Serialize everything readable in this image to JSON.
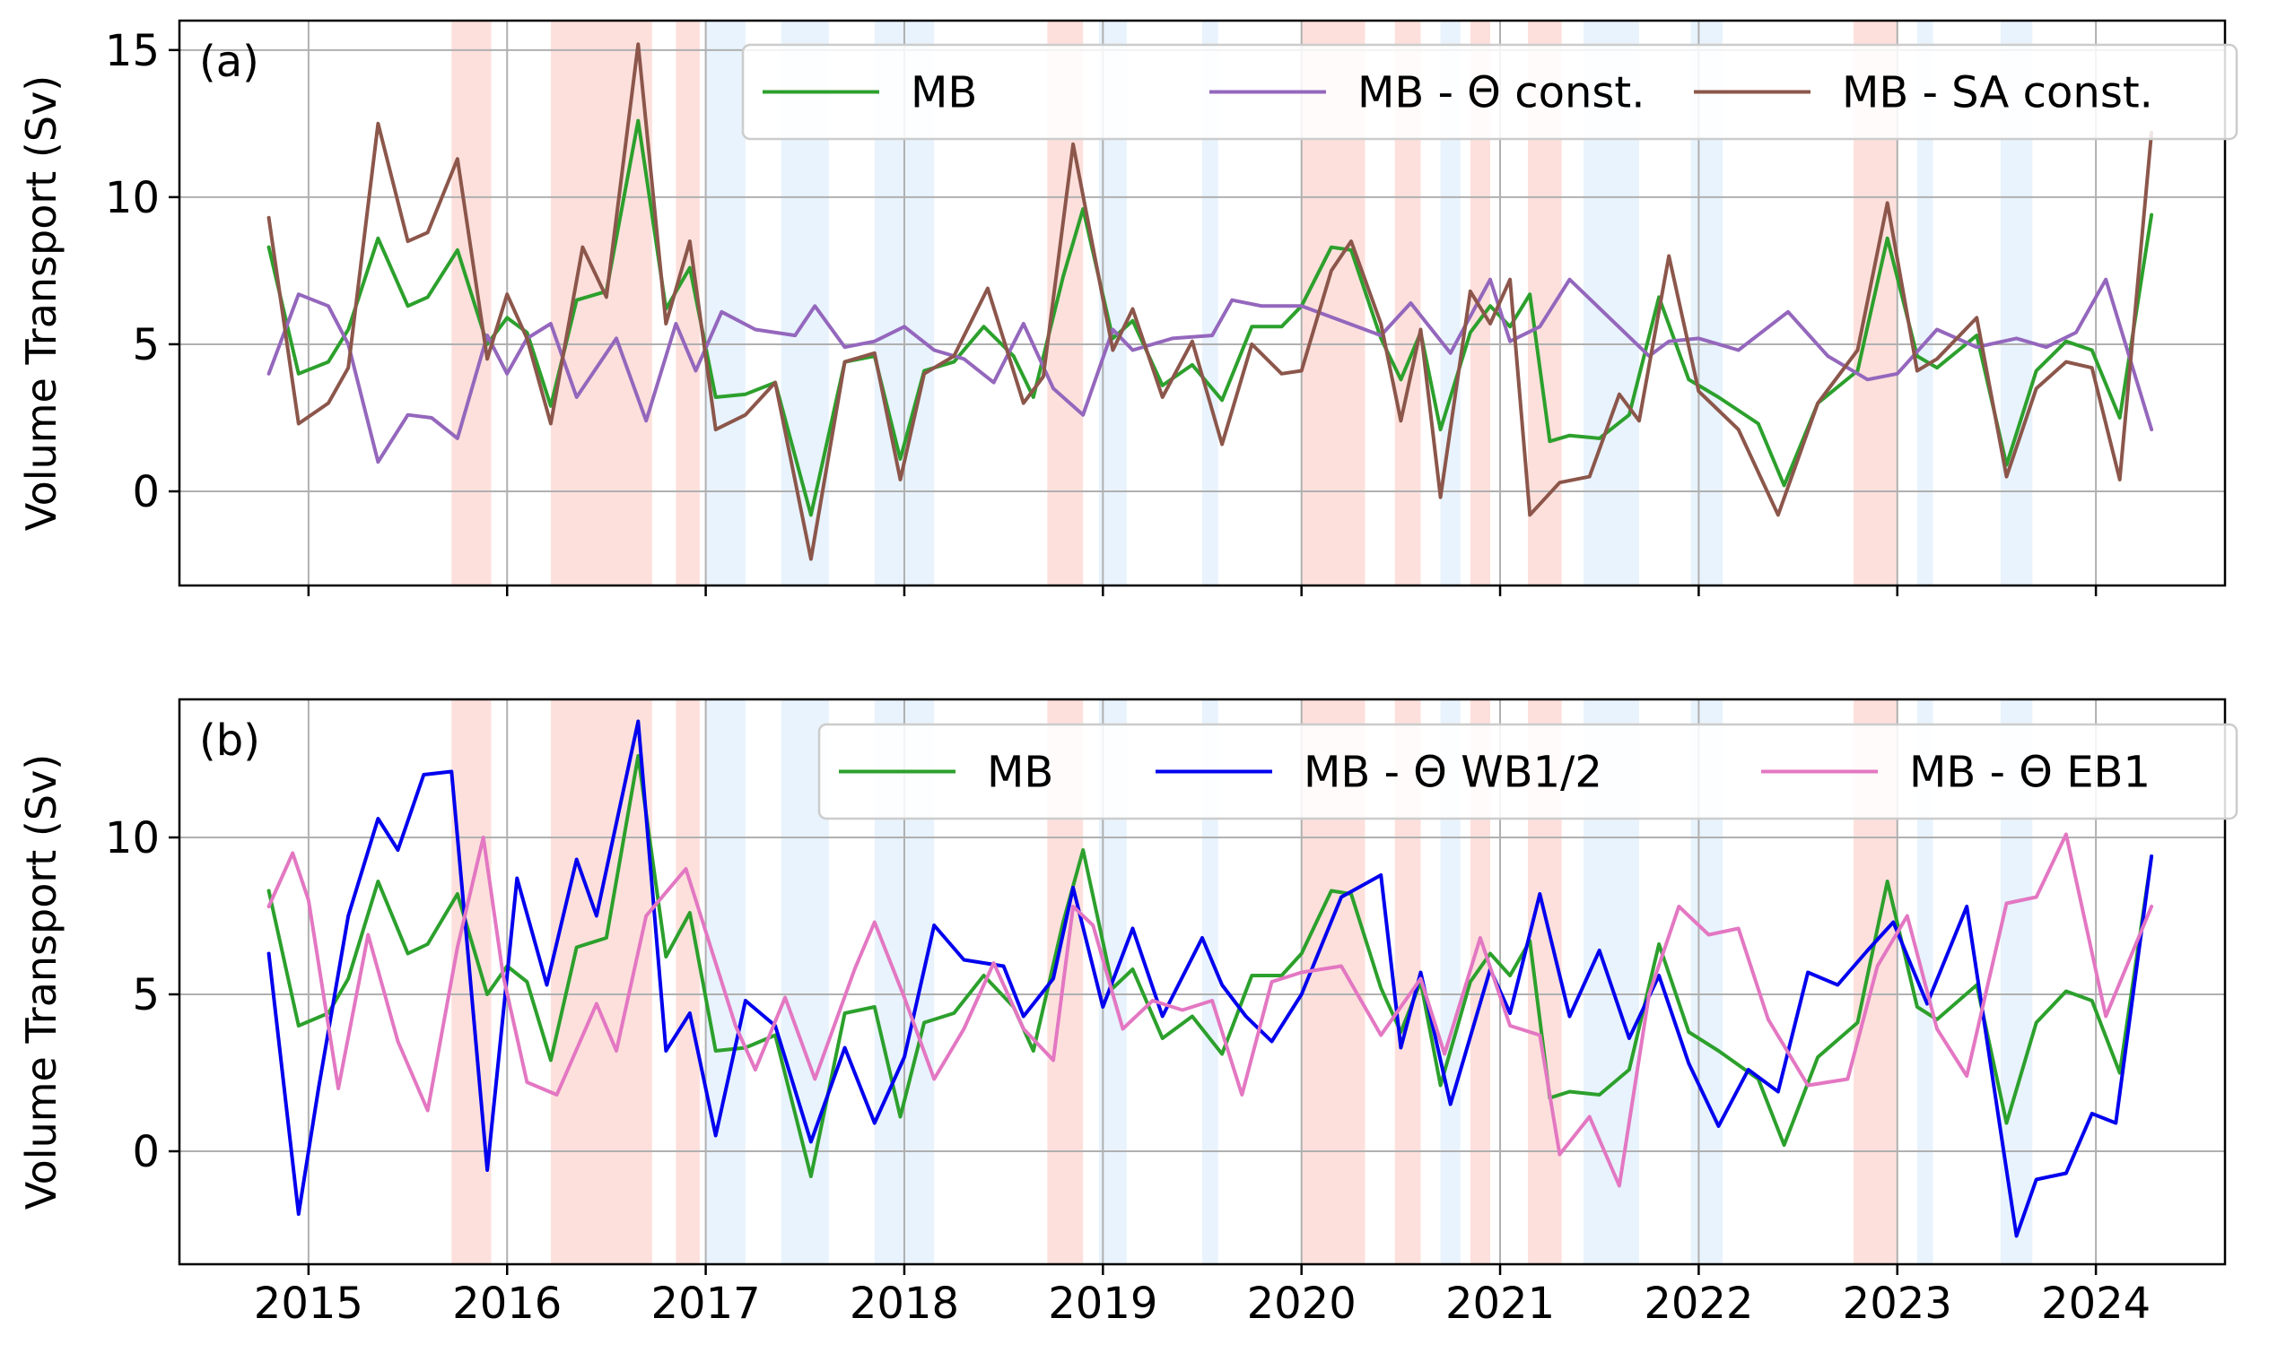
{
  "chart_data": [
    {
      "type": "line",
      "panel_label": "(a)",
      "ylabel": "Volume Transport (Sv)",
      "xlim": [
        2014.35,
        2024.65
      ],
      "ylim": [
        -3.2,
        16.0
      ],
      "yticks": [
        0,
        5,
        10,
        15
      ],
      "xticks": [
        2015,
        2016,
        2017,
        2018,
        2019,
        2020,
        2021,
        2022,
        2023,
        2024
      ],
      "grid": true,
      "legend_position": "top-right",
      "series": [
        {
          "name": "MB",
          "color": "#2ca02c",
          "x": [
            2014.8,
            2014.95,
            2015.1,
            2015.2,
            2015.35,
            2015.5,
            2015.6,
            2015.75,
            2015.9,
            2016.0,
            2016.1,
            2016.22,
            2016.35,
            2016.5,
            2016.66,
            2016.8,
            2016.92,
            2017.05,
            2017.2,
            2017.35,
            2017.53,
            2017.7,
            2017.85,
            2017.98,
            2018.1,
            2018.25,
            2018.4,
            2018.55,
            2018.65,
            2018.8,
            2018.9,
            2019.05,
            2019.15,
            2019.3,
            2019.45,
            2019.6,
            2019.75,
            2019.9,
            2020.0,
            2020.15,
            2020.25,
            2020.4,
            2020.5,
            2020.6,
            2020.7,
            2020.85,
            2020.95,
            2021.05,
            2021.15,
            2021.25,
            2021.35,
            2021.5,
            2021.65,
            2021.8,
            2021.95,
            2022.1,
            2022.3,
            2022.43,
            2022.6,
            2022.8,
            2022.95,
            2023.1,
            2023.2,
            2023.4,
            2023.55,
            2023.7,
            2023.85,
            2023.98,
            2024.12,
            2024.28
          ],
          "y": [
            8.3,
            4.0,
            4.4,
            5.5,
            8.6,
            6.3,
            6.6,
            8.2,
            5.0,
            5.9,
            5.4,
            2.9,
            6.5,
            6.8,
            12.6,
            6.2,
            7.6,
            3.2,
            3.3,
            3.7,
            -0.8,
            4.4,
            4.6,
            1.1,
            4.1,
            4.4,
            5.6,
            4.6,
            3.2,
            7.3,
            9.6,
            5.2,
            5.8,
            3.6,
            4.3,
            3.1,
            5.6,
            5.6,
            6.3,
            8.3,
            8.2,
            5.2,
            3.8,
            5.4,
            2.1,
            5.4,
            6.3,
            5.6,
            6.7,
            1.7,
            1.9,
            1.8,
            2.6,
            6.6,
            3.8,
            3.2,
            2.3,
            0.2,
            3.0,
            4.1,
            8.6,
            4.6,
            4.2,
            5.3,
            0.9,
            4.1,
            5.1,
            4.8,
            2.5,
            9.4
          ]
        },
        {
          "name": "MB - Θ const.",
          "color": "#9467bd",
          "x": [
            2014.8,
            2014.95,
            2015.1,
            2015.2,
            2015.35,
            2015.5,
            2015.62,
            2015.75,
            2015.9,
            2016.0,
            2016.1,
            2016.22,
            2016.35,
            2016.55,
            2016.7,
            2016.85,
            2016.95,
            2017.08,
            2017.25,
            2017.45,
            2017.55,
            2017.7,
            2017.85,
            2018.0,
            2018.15,
            2018.3,
            2018.45,
            2018.6,
            2018.75,
            2018.9,
            2019.05,
            2019.15,
            2019.35,
            2019.55,
            2019.65,
            2019.8,
            2020.0,
            2020.2,
            2020.4,
            2020.55,
            2020.75,
            2020.95,
            2021.05,
            2021.2,
            2021.35,
            2021.55,
            2021.75,
            2021.85,
            2022.0,
            2022.2,
            2022.45,
            2022.65,
            2022.85,
            2023.0,
            2023.2,
            2023.4,
            2023.6,
            2023.75,
            2023.9,
            2024.05,
            2024.28
          ],
          "y": [
            4.0,
            6.7,
            6.3,
            5.0,
            1.0,
            2.6,
            2.5,
            1.8,
            5.3,
            4.0,
            5.2,
            5.7,
            3.2,
            5.2,
            2.4,
            5.7,
            4.1,
            6.1,
            5.5,
            5.3,
            6.3,
            4.9,
            5.1,
            5.6,
            4.8,
            4.5,
            3.7,
            5.7,
            3.5,
            2.6,
            5.5,
            4.8,
            5.2,
            5.3,
            6.5,
            6.3,
            6.3,
            5.8,
            5.3,
            6.4,
            4.7,
            7.2,
            5.1,
            5.6,
            7.2,
            5.9,
            4.6,
            5.1,
            5.2,
            4.8,
            6.1,
            4.6,
            3.8,
            4.0,
            5.5,
            4.9,
            5.2,
            4.9,
            5.4,
            7.2,
            2.1
          ]
        },
        {
          "name": "MB - SA const.",
          "color": "#8c564b",
          "x": [
            2014.8,
            2014.95,
            2015.1,
            2015.2,
            2015.35,
            2015.5,
            2015.6,
            2015.75,
            2015.9,
            2016.0,
            2016.1,
            2016.22,
            2016.38,
            2016.5,
            2016.66,
            2016.8,
            2016.92,
            2017.05,
            2017.2,
            2017.35,
            2017.53,
            2017.7,
            2017.85,
            2017.98,
            2018.1,
            2018.25,
            2018.42,
            2018.6,
            2018.7,
            2018.85,
            2019.05,
            2019.15,
            2019.3,
            2019.45,
            2019.6,
            2019.75,
            2019.9,
            2020.0,
            2020.15,
            2020.25,
            2020.4,
            2020.5,
            2020.6,
            2020.7,
            2020.85,
            2020.95,
            2021.05,
            2021.15,
            2021.3,
            2021.45,
            2021.6,
            2021.7,
            2021.85,
            2022.0,
            2022.2,
            2022.4,
            2022.6,
            2022.8,
            2022.95,
            2023.1,
            2023.2,
            2023.4,
            2023.55,
            2023.7,
            2023.85,
            2023.98,
            2024.12,
            2024.28
          ],
          "y": [
            9.3,
            2.3,
            3.0,
            4.2,
            12.5,
            8.5,
            8.8,
            11.3,
            4.5,
            6.7,
            5.2,
            2.3,
            8.3,
            6.6,
            15.2,
            5.7,
            8.5,
            2.1,
            2.6,
            3.7,
            -2.3,
            4.4,
            4.7,
            0.4,
            4.0,
            4.6,
            6.9,
            3.0,
            3.9,
            11.8,
            4.8,
            6.2,
            3.2,
            5.1,
            1.6,
            5.0,
            4.0,
            4.1,
            7.5,
            8.5,
            5.7,
            2.4,
            5.5,
            -0.2,
            6.8,
            5.7,
            7.2,
            -0.8,
            0.3,
            0.5,
            3.3,
            2.4,
            8.0,
            3.4,
            2.1,
            -0.8,
            3.0,
            4.8,
            9.8,
            4.1,
            4.5,
            5.9,
            0.5,
            3.5,
            4.4,
            4.2,
            0.4,
            12.2
          ]
        }
      ]
    },
    {
      "type": "line",
      "panel_label": "(b)",
      "ylabel": "Volume Transport (Sv)",
      "xlim": [
        2014.35,
        2024.65
      ],
      "ylim": [
        -3.6,
        14.4
      ],
      "yticks": [
        0,
        5,
        10
      ],
      "xticks": [
        2015,
        2016,
        2017,
        2018,
        2019,
        2020,
        2021,
        2022,
        2023,
        2024
      ],
      "xtick_labels": [
        "2015",
        "2016",
        "2017",
        "2018",
        "2019",
        "2020",
        "2021",
        "2022",
        "2023",
        "2024"
      ],
      "grid": true,
      "legend_position": "top-right",
      "series": [
        {
          "name": "MB",
          "color": "#2ca02c",
          "x": [
            2014.8,
            2014.95,
            2015.1,
            2015.2,
            2015.35,
            2015.5,
            2015.6,
            2015.75,
            2015.9,
            2016.0,
            2016.1,
            2016.22,
            2016.35,
            2016.5,
            2016.66,
            2016.8,
            2016.92,
            2017.05,
            2017.2,
            2017.35,
            2017.53,
            2017.7,
            2017.85,
            2017.98,
            2018.1,
            2018.25,
            2018.4,
            2018.55,
            2018.65,
            2018.8,
            2018.9,
            2019.05,
            2019.15,
            2019.3,
            2019.45,
            2019.6,
            2019.75,
            2019.9,
            2020.0,
            2020.15,
            2020.25,
            2020.4,
            2020.5,
            2020.6,
            2020.7,
            2020.85,
            2020.95,
            2021.05,
            2021.15,
            2021.25,
            2021.35,
            2021.5,
            2021.65,
            2021.8,
            2021.95,
            2022.1,
            2022.3,
            2022.43,
            2022.6,
            2022.8,
            2022.95,
            2023.1,
            2023.2,
            2023.4,
            2023.55,
            2023.7,
            2023.85,
            2023.98,
            2024.12,
            2024.28
          ],
          "y": [
            8.3,
            4.0,
            4.4,
            5.5,
            8.6,
            6.3,
            6.6,
            8.2,
            5.0,
            5.9,
            5.4,
            2.9,
            6.5,
            6.8,
            12.6,
            6.2,
            7.6,
            3.2,
            3.3,
            3.7,
            -0.8,
            4.4,
            4.6,
            1.1,
            4.1,
            4.4,
            5.6,
            4.6,
            3.2,
            7.3,
            9.6,
            5.2,
            5.8,
            3.6,
            4.3,
            3.1,
            5.6,
            5.6,
            6.3,
            8.3,
            8.2,
            5.2,
            3.8,
            5.4,
            2.1,
            5.4,
            6.3,
            5.6,
            6.7,
            1.7,
            1.9,
            1.8,
            2.6,
            6.6,
            3.8,
            3.2,
            2.3,
            0.2,
            3.0,
            4.1,
            8.6,
            4.6,
            4.2,
            5.3,
            0.9,
            4.1,
            5.1,
            4.8,
            2.5,
            9.4
          ]
        },
        {
          "name": "MB - Θ WB1/2",
          "color": "#0000ee",
          "x": [
            2014.8,
            2014.95,
            2015.05,
            2015.2,
            2015.35,
            2015.45,
            2015.58,
            2015.72,
            2015.8,
            2015.9,
            2016.05,
            2016.2,
            2016.35,
            2016.45,
            2016.66,
            2016.8,
            2016.92,
            2017.05,
            2017.2,
            2017.35,
            2017.53,
            2017.7,
            2017.85,
            2018.0,
            2018.15,
            2018.3,
            2018.5,
            2018.6,
            2018.75,
            2018.85,
            2019.0,
            2019.15,
            2019.3,
            2019.5,
            2019.6,
            2019.72,
            2019.85,
            2020.0,
            2020.2,
            2020.4,
            2020.5,
            2020.6,
            2020.75,
            2020.95,
            2021.05,
            2021.2,
            2021.35,
            2021.5,
            2021.65,
            2021.8,
            2021.95,
            2022.1,
            2022.25,
            2022.4,
            2022.55,
            2022.7,
            2022.85,
            2022.98,
            2023.15,
            2023.35,
            2023.5,
            2023.6,
            2023.7,
            2023.85,
            2023.98,
            2024.1,
            2024.28
          ],
          "y": [
            6.3,
            -2.0,
            2.0,
            7.5,
            10.6,
            9.6,
            12.0,
            12.1,
            6.5,
            -0.6,
            8.7,
            5.3,
            9.3,
            7.5,
            13.7,
            3.2,
            4.4,
            0.5,
            4.8,
            4.0,
            0.3,
            3.3,
            0.9,
            3.0,
            7.2,
            6.1,
            5.9,
            4.3,
            5.5,
            8.4,
            4.6,
            7.1,
            4.3,
            6.8,
            5.3,
            4.3,
            3.5,
            5.0,
            8.1,
            8.8,
            3.3,
            5.7,
            1.5,
            5.8,
            4.4,
            8.2,
            4.3,
            6.4,
            3.6,
            5.6,
            2.8,
            0.8,
            2.6,
            1.9,
            5.7,
            5.3,
            6.4,
            7.3,
            4.7,
            7.8,
            1.5,
            -2.7,
            -0.9,
            -0.7,
            1.2,
            0.9,
            9.4
          ]
        },
        {
          "name": "MB - Θ EB1",
          "color": "#e377c2",
          "x": [
            2014.8,
            2014.92,
            2015.0,
            2015.15,
            2015.3,
            2015.45,
            2015.6,
            2015.75,
            2015.88,
            2015.98,
            2016.1,
            2016.25,
            2016.45,
            2016.55,
            2016.7,
            2016.9,
            2017.05,
            2017.15,
            2017.25,
            2017.4,
            2017.55,
            2017.75,
            2017.85,
            2018.0,
            2018.15,
            2018.3,
            2018.45,
            2018.6,
            2018.75,
            2018.85,
            2018.95,
            2019.1,
            2019.25,
            2019.4,
            2019.55,
            2019.7,
            2019.85,
            2020.0,
            2020.2,
            2020.4,
            2020.6,
            2020.72,
            2020.9,
            2021.05,
            2021.2,
            2021.3,
            2021.45,
            2021.6,
            2021.75,
            2021.9,
            2022.05,
            2022.2,
            2022.35,
            2022.55,
            2022.75,
            2022.9,
            2023.05,
            2023.2,
            2023.35,
            2023.55,
            2023.7,
            2023.85,
            2024.05,
            2024.28
          ],
          "y": [
            7.8,
            9.5,
            8.0,
            2.0,
            6.9,
            3.5,
            1.3,
            6.5,
            10.0,
            5.6,
            2.2,
            1.8,
            4.7,
            3.2,
            7.5,
            9.0,
            6.0,
            4.0,
            2.6,
            4.9,
            2.3,
            5.8,
            7.3,
            4.9,
            2.3,
            3.9,
            6.0,
            3.9,
            2.9,
            7.8,
            7.2,
            3.9,
            4.8,
            4.5,
            4.8,
            1.8,
            5.4,
            5.7,
            5.9,
            3.7,
            5.5,
            3.1,
            6.8,
            4.0,
            3.7,
            -0.1,
            1.1,
            -1.1,
            5.0,
            7.8,
            6.9,
            7.1,
            4.2,
            2.1,
            2.3,
            5.9,
            7.5,
            3.9,
            2.4,
            7.9,
            8.1,
            10.1,
            4.3,
            7.8
          ]
        }
      ]
    }
  ],
  "shading": {
    "red_color": "#fde0dc",
    "blue_color": "#e8f3fd",
    "red_periods": [
      [
        2015.72,
        2015.92
      ],
      [
        2016.22,
        2016.73
      ],
      [
        2016.85,
        2016.97
      ],
      [
        2018.72,
        2018.9
      ],
      [
        2020.0,
        2020.32
      ],
      [
        2020.47,
        2020.6
      ],
      [
        2020.85,
        2020.95
      ],
      [
        2021.14,
        2021.31
      ],
      [
        2022.78,
        2023.0
      ]
    ],
    "blue_periods": [
      [
        2017.0,
        2017.2
      ],
      [
        2017.38,
        2017.62
      ],
      [
        2017.85,
        2018.15
      ],
      [
        2018.98,
        2019.12
      ],
      [
        2019.5,
        2019.58
      ],
      [
        2020.7,
        2020.8
      ],
      [
        2021.42,
        2021.7
      ],
      [
        2021.96,
        2022.12
      ],
      [
        2023.1,
        2023.18
      ],
      [
        2023.52,
        2023.68
      ]
    ]
  }
}
